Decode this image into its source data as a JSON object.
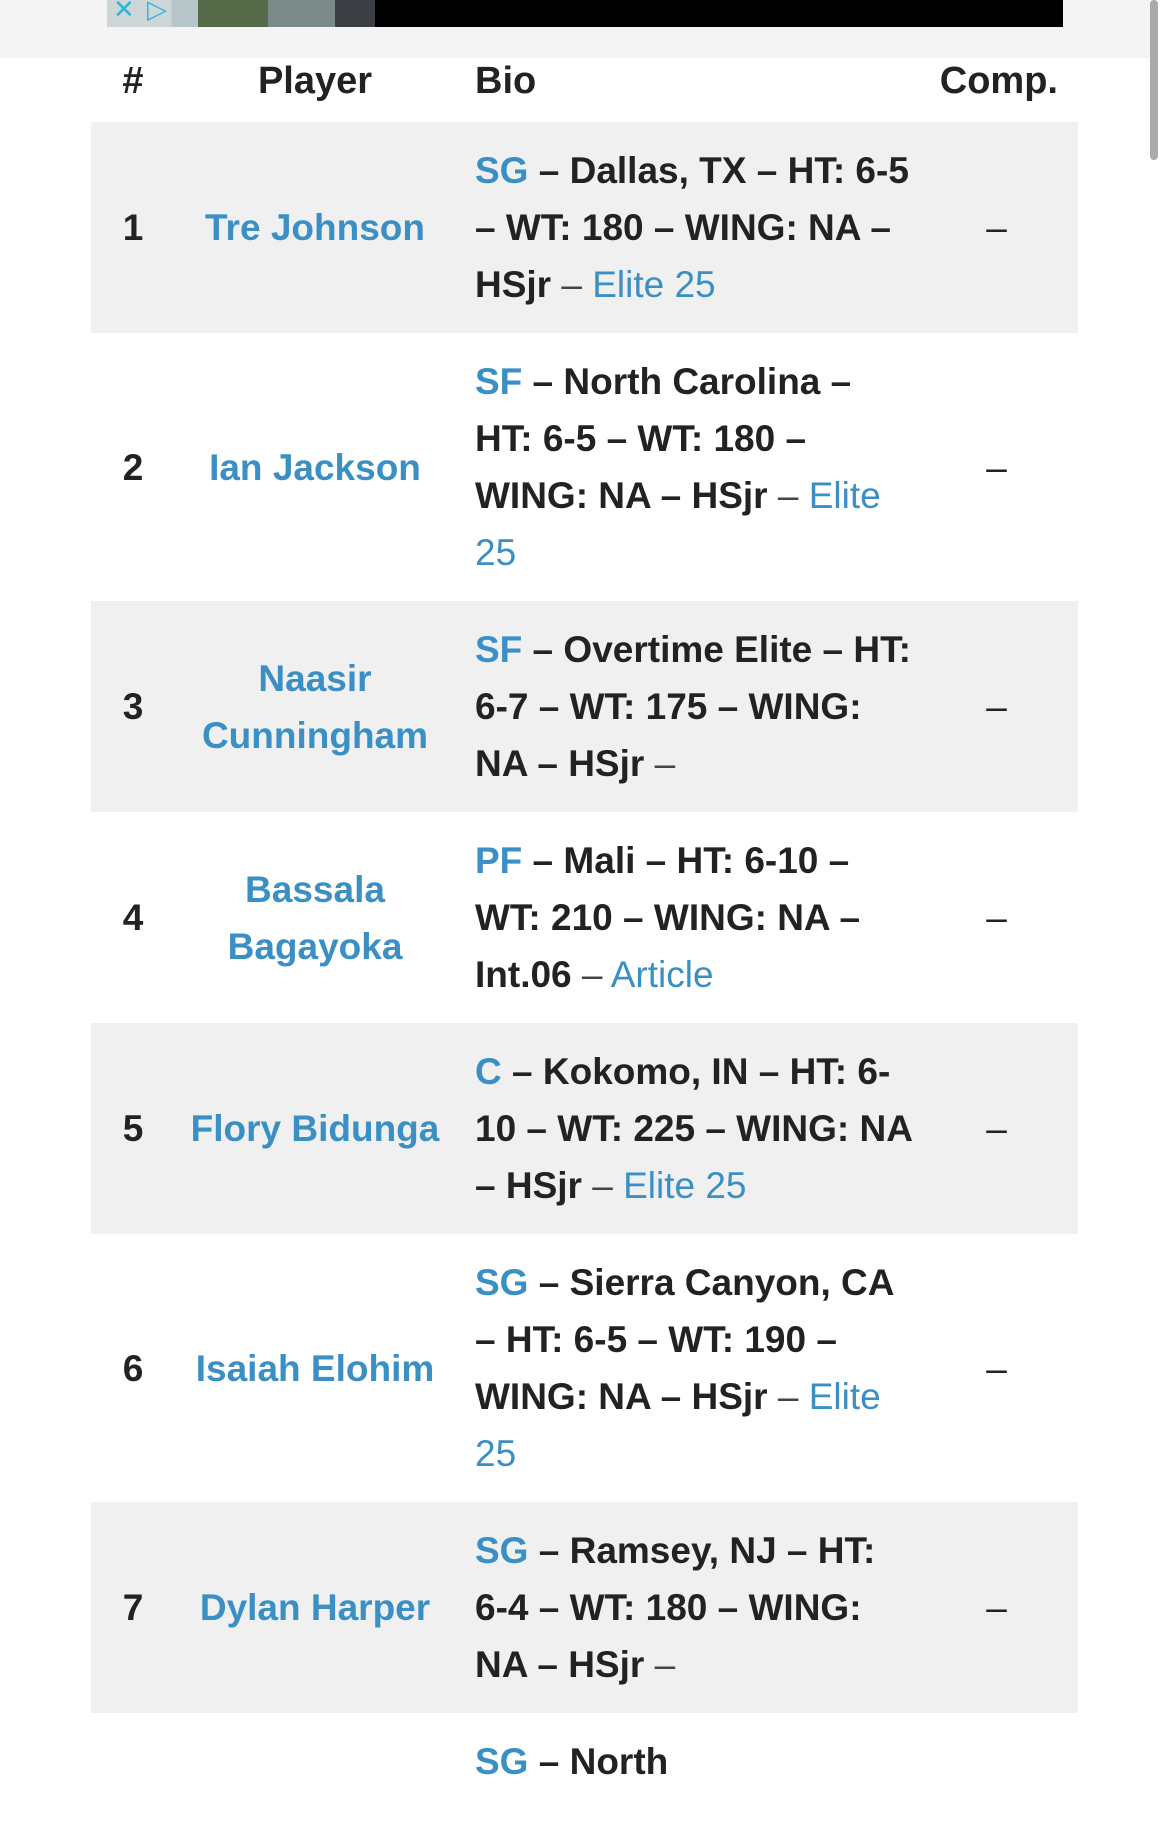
{
  "table": {
    "headers": {
      "num": "#",
      "player": "Player",
      "bio": "Bio",
      "comp": "Comp."
    },
    "rows": [
      {
        "num": "1",
        "player": "Tre Johnson",
        "pos": "SG",
        "body": " – Dallas, TX – HT: 6-5 – WT: 180 – WING: NA – HSjr",
        "sep": " – ",
        "link": "Elite 25",
        "comp": "–"
      },
      {
        "num": "2",
        "player": "Ian Jackson",
        "pos": "SF",
        "body": " – North Carolina – HT: 6-5 – WT: 180 – WING: NA – HSjr",
        "sep": " – ",
        "link": "Elite 25",
        "comp": "–"
      },
      {
        "num": "3",
        "player": "Naasir Cunningham",
        "pos": "SF",
        "body": " – Overtime Elite – HT: 6-7 – WT: 175 – WING: NA – HSjr",
        "sep": " –",
        "link": "",
        "comp": "–"
      },
      {
        "num": "4",
        "player": "Bassala Bagayoka",
        "pos": "PF",
        "body": " – Mali – HT: 6-10 – WT: 210 – WING: NA – Int.06",
        "sep": " – ",
        "link": "Article",
        "comp": "–"
      },
      {
        "num": "5",
        "player": "Flory Bidunga",
        "pos": "C",
        "body": " – Kokomo, IN – HT: 6-10 – WT: 225 – WING: NA – HSjr",
        "sep": " – ",
        "link": "Elite 25",
        "comp": "–"
      },
      {
        "num": "6",
        "player": "Isaiah Elohim",
        "pos": "SG",
        "body": " – Sierra Canyon, CA – HT: 6-5 – WT: 190 – WING: NA – HSjr",
        "sep": " – ",
        "link": "Elite 25",
        "comp": "–"
      },
      {
        "num": "7",
        "player": "Dylan Harper",
        "pos": "SG",
        "body": " – Ramsey, NJ – HT: 6-4 – WT: 180 – WING: NA – HSjr",
        "sep": " –",
        "link": "",
        "comp": "–"
      },
      {
        "num": "",
        "player": "",
        "pos": "SG",
        "body": " – North",
        "sep": "",
        "link": "",
        "comp": ""
      }
    ]
  },
  "colors": {
    "link": "#3a8fc4",
    "row_alt": "#f0f0f0",
    "text": "#222222"
  },
  "ad": {
    "icons": [
      "close-icon",
      "adchoices-icon"
    ]
  }
}
